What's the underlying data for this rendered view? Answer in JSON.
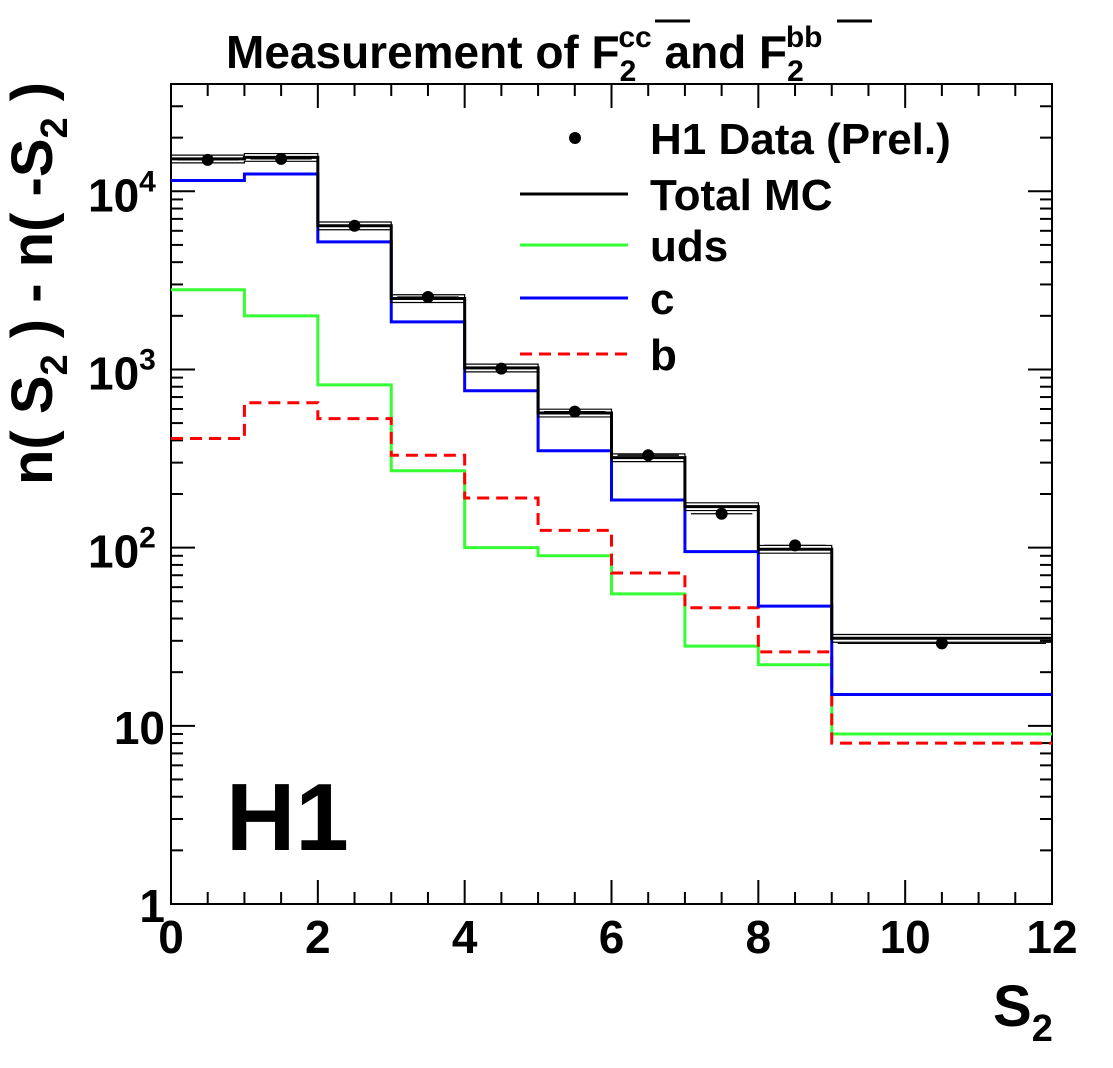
{
  "chart_data": {
    "type": "step",
    "title": {
      "prefix": "Measurement of F",
      "sub1": "2",
      "sup1": "cc",
      "middle": " and F",
      "sub2": "2",
      "sup2": "bb",
      "full_text": "Measurement of F2cc and F2bb"
    },
    "xlabel": {
      "main": "S",
      "sub": "2"
    },
    "ylabel": {
      "p1": "n( S",
      "s1": "2",
      "p2": " ) - n( -S",
      "s2": "2",
      "p3": " )"
    },
    "xlim": [
      0,
      12
    ],
    "ylim": [
      1,
      40000
    ],
    "y_scale": "log",
    "x_ticks": [
      "0",
      "2",
      "4",
      "6",
      "8",
      "10",
      "12"
    ],
    "y_ticks": [
      {
        "value": 1,
        "label": "1"
      },
      {
        "value": 10,
        "label": "10"
      },
      {
        "value": 100,
        "label": "10",
        "exp": "2"
      },
      {
        "value": 1000,
        "label": "10",
        "exp": "3"
      },
      {
        "value": 10000,
        "label": "10",
        "exp": "4"
      }
    ],
    "bin_edges": [
      0,
      1,
      2,
      3,
      4,
      5,
      6,
      7,
      8,
      9,
      12
    ],
    "series": [
      {
        "name": "Total MC",
        "color": "#000000",
        "style": "solid",
        "values": [
          15200,
          15500,
          6400,
          2500,
          1020,
          570,
          320,
          170,
          98,
          31
        ]
      },
      {
        "name": "uds",
        "color": "#33ff33",
        "style": "solid",
        "values": [
          2800,
          2000,
          820,
          270,
          100,
          90,
          55,
          28,
          22,
          9
        ]
      },
      {
        "name": "c",
        "color": "#0000ff",
        "style": "solid",
        "values": [
          11500,
          12500,
          5200,
          1850,
          760,
          350,
          185,
          95,
          47,
          15
        ]
      },
      {
        "name": "b",
        "color": "#ff0000",
        "style": "dashed",
        "values": [
          410,
          650,
          530,
          330,
          190,
          125,
          72,
          46,
          26,
          8
        ]
      }
    ],
    "data_points": {
      "name": "H1 Data (Prel.)",
      "color": "#000000",
      "x": [
        0.5,
        1.5,
        2.5,
        3.5,
        4.5,
        5.5,
        6.5,
        7.5,
        8.5,
        10.5
      ],
      "y": [
        15000,
        15200,
        6400,
        2550,
        1010,
        580,
        330,
        155,
        103,
        29
      ]
    },
    "legend": {
      "position": "top-right",
      "entries": [
        "H1 Data (Prel.)",
        "Total MC",
        "uds",
        "c",
        "b"
      ]
    },
    "annotation": "H1"
  }
}
